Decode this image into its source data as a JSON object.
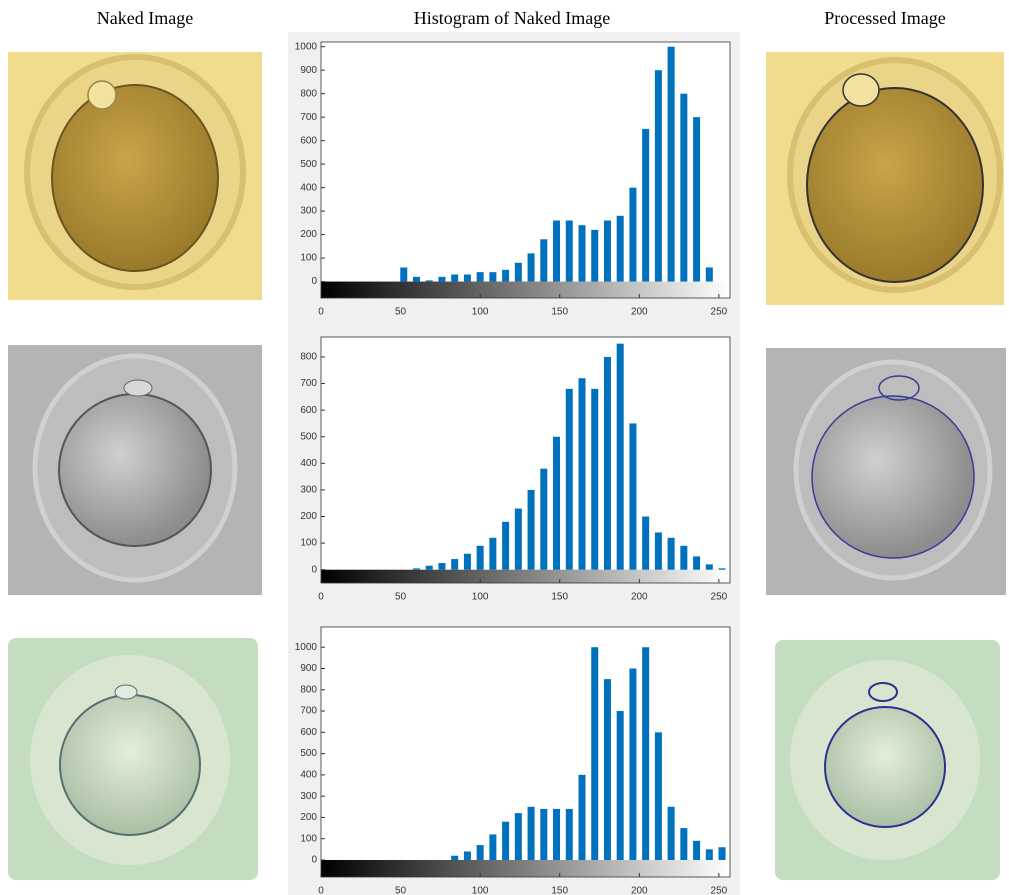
{
  "headers": [
    "Naked Image",
    "Histogram of Naked Image",
    "Processed Image"
  ],
  "chart_data": [
    {
      "type": "histogram",
      "color": "#0072bd",
      "bins": [
        0,
        8,
        16,
        24,
        32,
        40,
        48,
        56,
        64,
        72,
        80,
        88,
        96,
        104,
        112,
        120,
        128,
        136,
        144,
        152,
        160,
        168,
        176,
        184,
        192,
        200,
        208,
        216,
        224,
        232,
        240,
        248,
        256
      ],
      "values": [
        0,
        0,
        0,
        0,
        0,
        0,
        60,
        20,
        5,
        20,
        30,
        30,
        40,
        40,
        50,
        80,
        120,
        180,
        260,
        260,
        240,
        220,
        260,
        280,
        400,
        650,
        900,
        1000,
        800,
        700,
        60,
        0
      ],
      "xlim": [
        0,
        257
      ],
      "ylim": [
        -70,
        1020
      ],
      "xticks": [
        0,
        50,
        100,
        150,
        200,
        250
      ],
      "yticks": [
        0,
        100,
        200,
        300,
        400,
        500,
        600,
        700,
        800,
        900,
        1000
      ]
    },
    {
      "type": "histogram",
      "color": "#0072bd",
      "bins": [
        0,
        8,
        16,
        24,
        32,
        40,
        48,
        56,
        64,
        72,
        80,
        88,
        96,
        104,
        112,
        120,
        128,
        136,
        144,
        152,
        160,
        168,
        176,
        184,
        192,
        200,
        208,
        216,
        224,
        232,
        240,
        248,
        256
      ],
      "values": [
        0,
        0,
        0,
        0,
        0,
        0,
        0,
        5,
        15,
        25,
        40,
        60,
        90,
        120,
        180,
        230,
        300,
        380,
        500,
        680,
        720,
        680,
        800,
        850,
        550,
        200,
        140,
        120,
        90,
        50,
        20,
        5
      ],
      "xlim": [
        0,
        257
      ],
      "ylim": [
        -50,
        875
      ],
      "xticks": [
        0,
        50,
        100,
        150,
        200,
        250
      ],
      "yticks": [
        0,
        100,
        200,
        300,
        400,
        500,
        600,
        700,
        800
      ]
    },
    {
      "type": "histogram",
      "color": "#0072bd",
      "bins": [
        0,
        8,
        16,
        24,
        32,
        40,
        48,
        56,
        64,
        72,
        80,
        88,
        96,
        104,
        112,
        120,
        128,
        136,
        144,
        152,
        160,
        168,
        176,
        184,
        192,
        200,
        208,
        216,
        224,
        232,
        240,
        248,
        256
      ],
      "values": [
        0,
        0,
        0,
        0,
        0,
        0,
        0,
        0,
        0,
        0,
        20,
        40,
        70,
        120,
        180,
        220,
        250,
        240,
        240,
        240,
        400,
        1000,
        850,
        700,
        900,
        1000,
        600,
        250,
        150,
        90,
        50,
        60
      ],
      "xlim": [
        0,
        257
      ],
      "ylim": [
        -80,
        1095
      ],
      "xticks": [
        0,
        50,
        100,
        150,
        200,
        250
      ],
      "yticks": [
        0,
        100,
        200,
        300,
        400,
        500,
        600,
        700,
        800,
        900,
        1000
      ]
    }
  ]
}
